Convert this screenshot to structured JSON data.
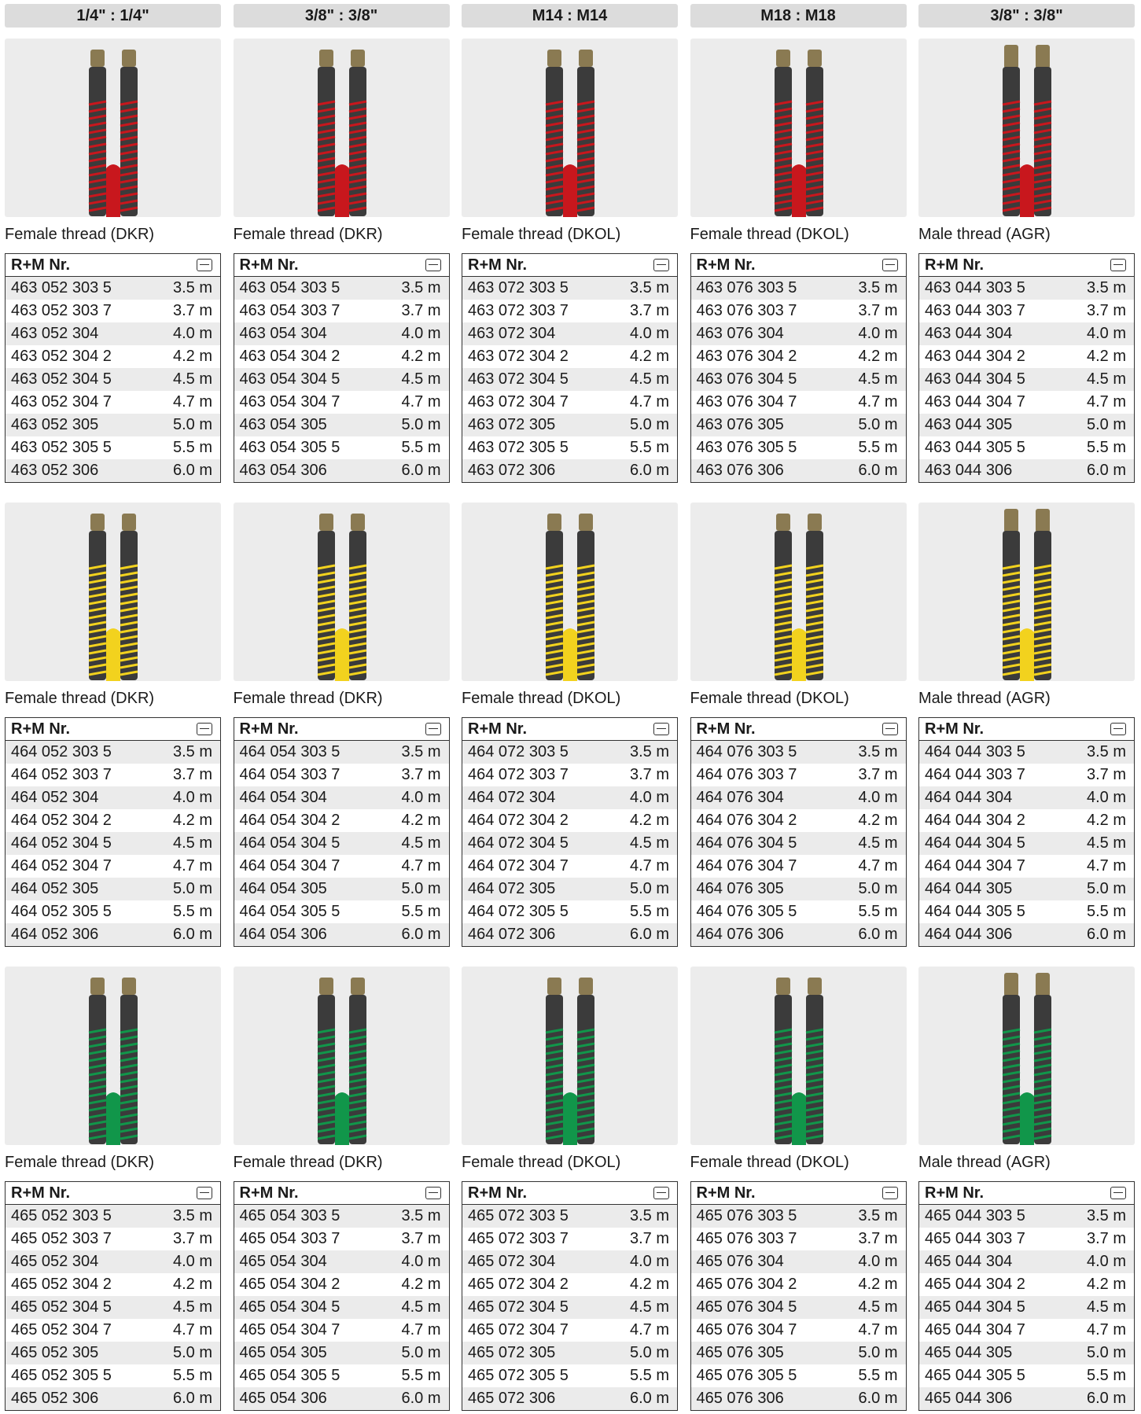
{
  "header_row": [
    "1/4\" : 1/4\"",
    "3/8\" : 3/8\"",
    "M14 : M14",
    "M18 : M18",
    "3/8\" : 3/8\""
  ],
  "groups": [
    {
      "items": [
        {
          "label": "Female thread (DKR)",
          "table": {
            "column_header": "R+M Nr.",
            "rows": [
              [
                "463 052 303 5",
                "3.5 m"
              ],
              [
                "463 052 303 7",
                "3.7 m"
              ],
              [
                "463 052 304",
                "4.0 m"
              ],
              [
                "463 052 304 2",
                "4.2 m"
              ],
              [
                "463 052 304 5",
                "4.5 m"
              ],
              [
                "463 052 304 7",
                "4.7 m"
              ],
              [
                "463 052 305",
                "5.0 m"
              ],
              [
                "463 052 305 5",
                "5.5 m"
              ],
              [
                "463 052 306",
                "6.0 m"
              ]
            ]
          }
        },
        {
          "label": "Female thread (DKR)",
          "table": {
            "column_header": "R+M Nr.",
            "rows": [
              [
                "463 054 303 5",
                "3.5 m"
              ],
              [
                "463 054 303 7",
                "3.7 m"
              ],
              [
                "463 054 304",
                "4.0 m"
              ],
              [
                "463 054 304 2",
                "4.2 m"
              ],
              [
                "463 054 304 5",
                "4.5 m"
              ],
              [
                "463 054 304 7",
                "4.7 m"
              ],
              [
                "463 054 305",
                "5.0 m"
              ],
              [
                "463 054 305 5",
                "5.5 m"
              ],
              [
                "463 054 306",
                "6.0 m"
              ]
            ]
          }
        },
        {
          "label": "Female thread (DKOL)",
          "table": {
            "column_header": "R+M Nr.",
            "rows": [
              [
                "463 072 303 5",
                "3.5 m"
              ],
              [
                "463 072 303 7",
                "3.7 m"
              ],
              [
                "463 072 304",
                "4.0 m"
              ],
              [
                "463 072 304 2",
                "4.2 m"
              ],
              [
                "463 072 304 5",
                "4.5 m"
              ],
              [
                "463 072 304 7",
                "4.7 m"
              ],
              [
                "463 072 305",
                "5.0 m"
              ],
              [
                "463 072 305 5",
                "5.5 m"
              ],
              [
                "463 072 306",
                "6.0 m"
              ]
            ]
          }
        },
        {
          "label": "Female thread (DKOL)",
          "table": {
            "column_header": "R+M Nr.",
            "rows": [
              [
                "463 076 303 5",
                "3.5 m"
              ],
              [
                "463 076 303 7",
                "3.7 m"
              ],
              [
                "463 076 304",
                "4.0 m"
              ],
              [
                "463 076 304 2",
                "4.2 m"
              ],
              [
                "463 076 304 5",
                "4.5 m"
              ],
              [
                "463 076 304 7",
                "4.7 m"
              ],
              [
                "463 076 305",
                "5.0 m"
              ],
              [
                "463 076 305 5",
                "5.5 m"
              ],
              [
                "463 076 306",
                "6.0 m"
              ]
            ]
          }
        },
        {
          "label": "Male thread (AGR)",
          "table": {
            "column_header": "R+M Nr.",
            "rows": [
              [
                "463 044 303 5",
                "3.5 m"
              ],
              [
                "463 044 303 7",
                "3.7 m"
              ],
              [
                "463 044 304",
                "4.0 m"
              ],
              [
                "463 044 304 2",
                "4.2 m"
              ],
              [
                "463 044 304 5",
                "4.5 m"
              ],
              [
                "463 044 304 7",
                "4.7 m"
              ],
              [
                "463 044 305",
                "5.0 m"
              ],
              [
                "463 044 305 5",
                "5.5 m"
              ],
              [
                "463 044 306",
                "6.0 m"
              ]
            ]
          }
        }
      ]
    },
    {
      "items": [
        {
          "label": "Female thread (DKR)",
          "table": {
            "column_header": "R+M Nr.",
            "rows": [
              [
                "464 052 303 5",
                "3.5 m"
              ],
              [
                "464 052 303 7",
                "3.7 m"
              ],
              [
                "464 052 304",
                "4.0 m"
              ],
              [
                "464 052 304 2",
                "4.2 m"
              ],
              [
                "464 052 304 5",
                "4.5 m"
              ],
              [
                "464 052 304 7",
                "4.7 m"
              ],
              [
                "464 052 305",
                "5.0 m"
              ],
              [
                "464 052 305 5",
                "5.5 m"
              ],
              [
                "464 052 306",
                "6.0 m"
              ]
            ]
          }
        },
        {
          "label": "Female thread (DKR)",
          "table": {
            "column_header": "R+M Nr.",
            "rows": [
              [
                "464 054 303 5",
                "3.5 m"
              ],
              [
                "464 054 303 7",
                "3.7 m"
              ],
              [
                "464 054 304",
                "4.0 m"
              ],
              [
                "464 054 304 2",
                "4.2 m"
              ],
              [
                "464 054 304 5",
                "4.5 m"
              ],
              [
                "464 054 304 7",
                "4.7 m"
              ],
              [
                "464 054 305",
                "5.0 m"
              ],
              [
                "464 054 305 5",
                "5.5 m"
              ],
              [
                "464 054 306",
                "6.0 m"
              ]
            ]
          }
        },
        {
          "label": "Female thread (DKOL)",
          "table": {
            "column_header": "R+M Nr.",
            "rows": [
              [
                "464 072 303 5",
                "3.5 m"
              ],
              [
                "464 072 303 7",
                "3.7 m"
              ],
              [
                "464 072 304",
                "4.0 m"
              ],
              [
                "464 072 304 2",
                "4.2 m"
              ],
              [
                "464 072 304 5",
                "4.5 m"
              ],
              [
                "464 072 304 7",
                "4.7 m"
              ],
              [
                "464 072 305",
                "5.0 m"
              ],
              [
                "464 072 305 5",
                "5.5 m"
              ],
              [
                "464 072 306",
                "6.0 m"
              ]
            ]
          }
        },
        {
          "label": "Female thread (DKOL)",
          "table": {
            "column_header": "R+M Nr.",
            "rows": [
              [
                "464 076 303 5",
                "3.5 m"
              ],
              [
                "464 076 303 7",
                "3.7 m"
              ],
              [
                "464 076 304",
                "4.0 m"
              ],
              [
                "464 076 304 2",
                "4.2 m"
              ],
              [
                "464 076 304 5",
                "4.5 m"
              ],
              [
                "464 076 304 7",
                "4.7 m"
              ],
              [
                "464 076 305",
                "5.0 m"
              ],
              [
                "464 076 305 5",
                "5.5 m"
              ],
              [
                "464 076 306",
                "6.0 m"
              ]
            ]
          }
        },
        {
          "label": "Male thread (AGR)",
          "table": {
            "column_header": "R+M Nr.",
            "rows": [
              [
                "464 044 303 5",
                "3.5 m"
              ],
              [
                "464 044 303 7",
                "3.7 m"
              ],
              [
                "464 044 304",
                "4.0 m"
              ],
              [
                "464 044 304 2",
                "4.2 m"
              ],
              [
                "464 044 304 5",
                "4.5 m"
              ],
              [
                "464 044 304 7",
                "4.7 m"
              ],
              [
                "464 044 305",
                "5.0 m"
              ],
              [
                "464 044 305 5",
                "5.5 m"
              ],
              [
                "464 044 306",
                "6.0 m"
              ]
            ]
          }
        }
      ]
    },
    {
      "items": [
        {
          "label": "Female thread (DKR)",
          "table": {
            "column_header": "R+M Nr.",
            "rows": [
              [
                "465 052 303 5",
                "3.5 m"
              ],
              [
                "465 052 303 7",
                "3.7 m"
              ],
              [
                "465 052 304",
                "4.0 m"
              ],
              [
                "465 052 304 2",
                "4.2 m"
              ],
              [
                "465 052 304 5",
                "4.5 m"
              ],
              [
                "465 052 304 7",
                "4.7 m"
              ],
              [
                "465 052 305",
                "5.0 m"
              ],
              [
                "465 052 305 5",
                "5.5 m"
              ],
              [
                "465 052 306",
                "6.0 m"
              ]
            ]
          }
        },
        {
          "label": "Female thread (DKR)",
          "table": {
            "column_header": "R+M Nr.",
            "rows": [
              [
                "465 054 303 5",
                "3.5 m"
              ],
              [
                "465 054 303 7",
                "3.7 m"
              ],
              [
                "465 054 304",
                "4.0 m"
              ],
              [
                "465 054 304 2",
                "4.2 m"
              ],
              [
                "465 054 304 5",
                "4.5 m"
              ],
              [
                "465 054 304 7",
                "4.7 m"
              ],
              [
                "465 054 305",
                "5.0 m"
              ],
              [
                "465 054 305 5",
                "5.5 m"
              ],
              [
                "465 054 306",
                "6.0 m"
              ]
            ]
          }
        },
        {
          "label": "Female thread (DKOL)",
          "table": {
            "column_header": "R+M Nr.",
            "rows": [
              [
                "465 072 303 5",
                "3.5 m"
              ],
              [
                "465 072 303 7",
                "3.7 m"
              ],
              [
                "465 072 304",
                "4.0 m"
              ],
              [
                "465 072 304 2",
                "4.2 m"
              ],
              [
                "465 072 304 5",
                "4.5 m"
              ],
              [
                "465 072 304 7",
                "4.7 m"
              ],
              [
                "465 072 305",
                "5.0 m"
              ],
              [
                "465 072 305 5",
                "5.5 m"
              ],
              [
                "465 072 306",
                "6.0 m"
              ]
            ]
          }
        },
        {
          "label": "Female thread (DKOL)",
          "table": {
            "column_header": "R+M Nr.",
            "rows": [
              [
                "465 076 303 5",
                "3.5 m"
              ],
              [
                "465 076 303 7",
                "3.7 m"
              ],
              [
                "465 076 304",
                "4.0 m"
              ],
              [
                "465 076 304 2",
                "4.2 m"
              ],
              [
                "465 076 304 5",
                "4.5 m"
              ],
              [
                "465 076 304 7",
                "4.7 m"
              ],
              [
                "465 076 305",
                "5.0 m"
              ],
              [
                "465 076 305 5",
                "5.5 m"
              ],
              [
                "465 076 306",
                "6.0 m"
              ]
            ]
          }
        },
        {
          "label": "Male thread (AGR)",
          "table": {
            "column_header": "R+M Nr.",
            "rows": [
              [
                "465 044 303 5",
                "3.5 m"
              ],
              [
                "465 044 303 7",
                "3.7 m"
              ],
              [
                "465 044 304",
                "4.0 m"
              ],
              [
                "465 044 304 2",
                "4.2 m"
              ],
              [
                "465 044 304 5",
                "4.5 m"
              ],
              [
                "465 044 304 7",
                "4.7 m"
              ],
              [
                "465 044 305",
                "5.0 m"
              ],
              [
                "465 044 305 5",
                "5.5 m"
              ],
              [
                "465 044 306",
                "6.0 m"
              ]
            ]
          }
        }
      ]
    }
  ]
}
